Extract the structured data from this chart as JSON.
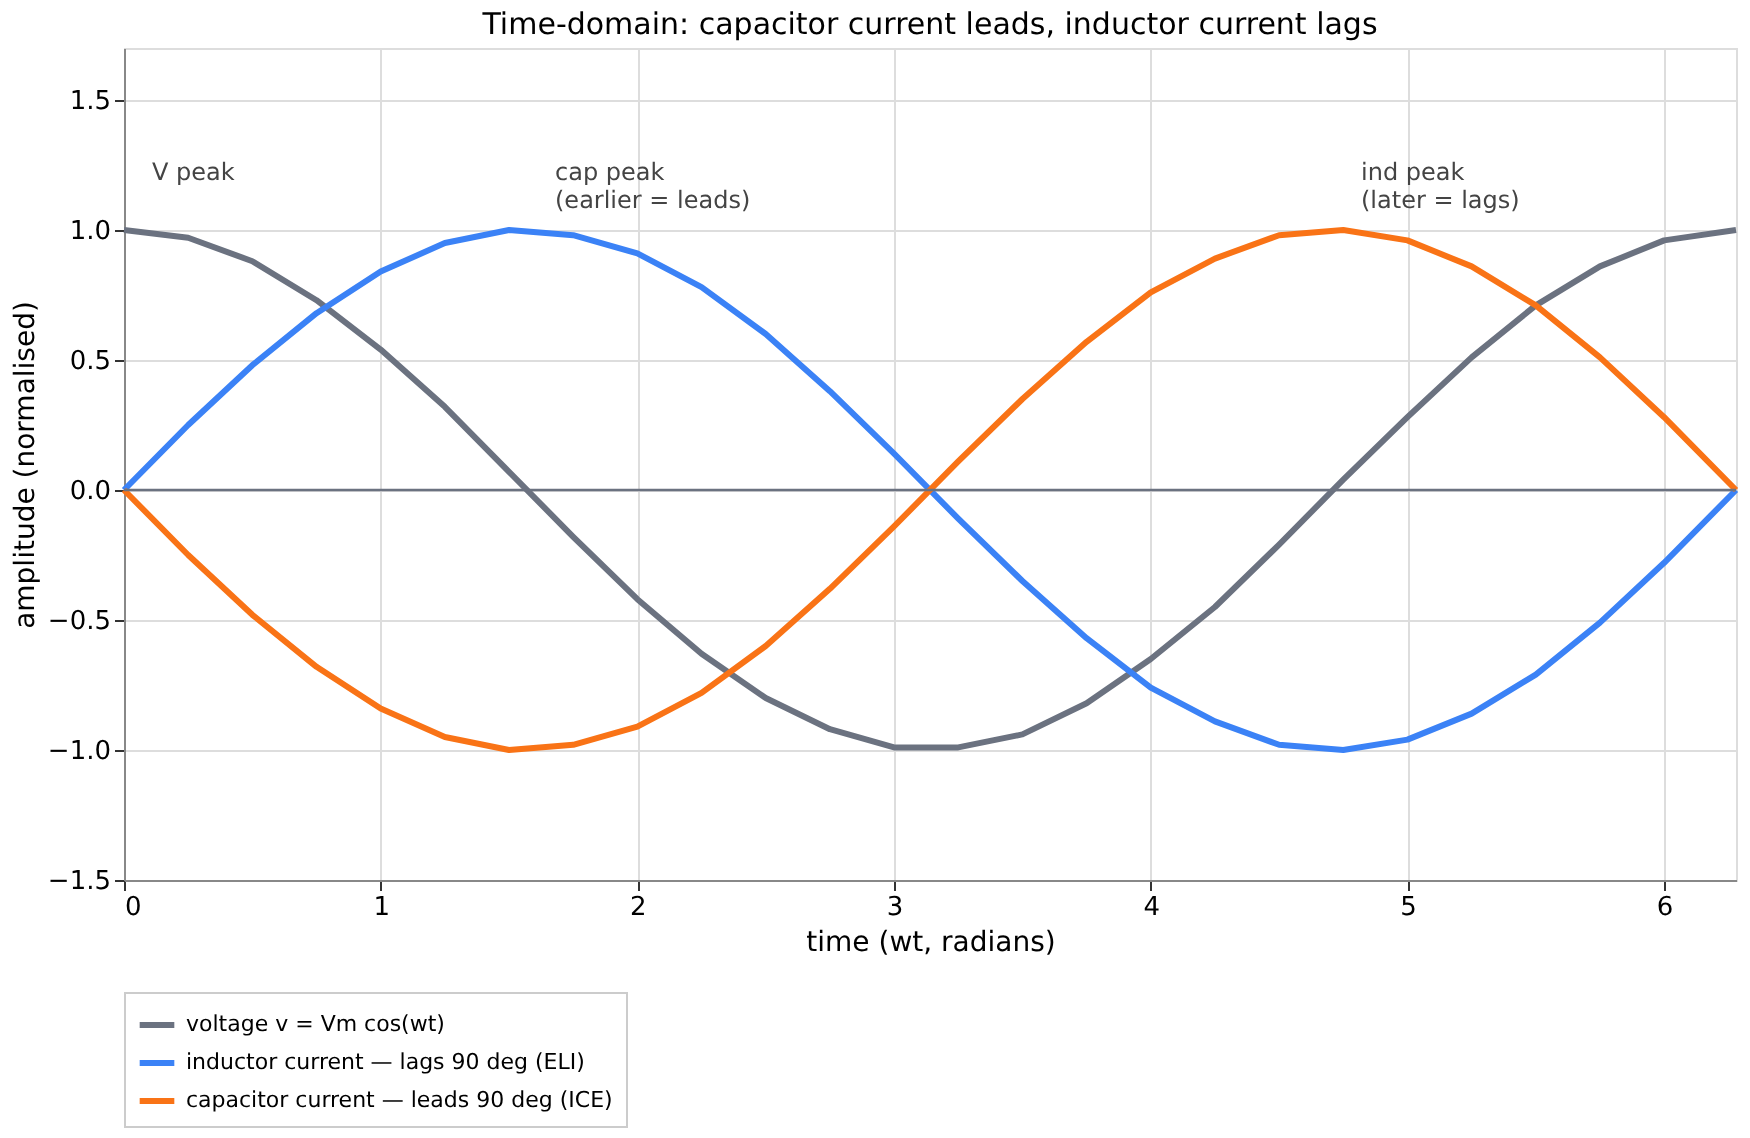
{
  "chart_data": {
    "type": "line",
    "title": "Time-domain: capacitor current leads, inductor current lags",
    "xlabel": "time  (wt, radians)",
    "ylabel": "amplitude (normalised)",
    "x": [
      0,
      0.25,
      0.5,
      0.75,
      1,
      1.25,
      1.5,
      1.75,
      2,
      2.25,
      2.5,
      2.75,
      3,
      3.25,
      3.5,
      3.75,
      4,
      4.25,
      4.5,
      4.75,
      5,
      5.25,
      5.5,
      5.75,
      6,
      6.28
    ],
    "series": [
      {
        "name": "voltage  v = Vm cos(wt)",
        "color": "#6b7280",
        "values": [
          1,
          0.97,
          0.88,
          0.73,
          0.54,
          0.32,
          0.07,
          -0.18,
          -0.42,
          -0.63,
          -0.8,
          -0.92,
          -0.99,
          -0.99,
          -0.94,
          -0.82,
          -0.65,
          -0.45,
          -0.21,
          0.04,
          0.28,
          0.51,
          0.71,
          0.86,
          0.96,
          1
        ]
      },
      {
        "name": "inductor current — lags 90 deg (ELI)",
        "color": "#3b82f6",
        "values": [
          0,
          0.25,
          0.48,
          0.68,
          0.84,
          0.95,
          1.0,
          0.98,
          0.91,
          0.78,
          0.6,
          0.38,
          0.14,
          -0.11,
          -0.35,
          -0.57,
          -0.76,
          -0.89,
          -0.98,
          -1.0,
          -0.96,
          -0.86,
          -0.71,
          -0.51,
          -0.28,
          0
        ]
      },
      {
        "name": "capacitor current — leads 90 deg (ICE)",
        "color": "#f97316",
        "values": [
          0,
          -0.25,
          -0.48,
          -0.68,
          -0.84,
          -0.95,
          -1.0,
          -0.98,
          -0.91,
          -0.78,
          -0.6,
          -0.38,
          -0.14,
          0.11,
          0.35,
          0.57,
          0.76,
          0.89,
          0.98,
          1.0,
          0.96,
          0.86,
          0.71,
          0.51,
          0.28,
          0
        ]
      }
    ],
    "xlim": [
      0,
      6.28
    ],
    "xticks": [
      0,
      1,
      2,
      3,
      4,
      5,
      6
    ],
    "ylim": [
      -1.5,
      1.7
    ],
    "yticks": [
      {
        "value": -1.5,
        "label": "−1.5"
      },
      {
        "value": -1,
        "label": "−1.0"
      },
      {
        "value": -0.5,
        "label": "−0.5"
      },
      {
        "value": 0,
        "label": "0.0"
      },
      {
        "value": 0.5,
        "label": "0.5"
      },
      {
        "value": 1,
        "label": "1.0"
      },
      {
        "value": 1.5,
        "label": "1.5"
      }
    ],
    "ref_lines": [
      {
        "axis": "y",
        "value": 0,
        "color": "#6b7280"
      }
    ],
    "annotations": [
      {
        "text": "V peak",
        "x": 0,
        "y": 1
      },
      {
        "text": "cap peak\n(earlier = leads)",
        "x": 1.57,
        "y": 1
      },
      {
        "text": "ind peak\n(later = lags)",
        "x": 4.71,
        "y": 1
      }
    ],
    "grid": true,
    "legend": "bottom",
    "line_style": "solid",
    "marker": "none"
  }
}
